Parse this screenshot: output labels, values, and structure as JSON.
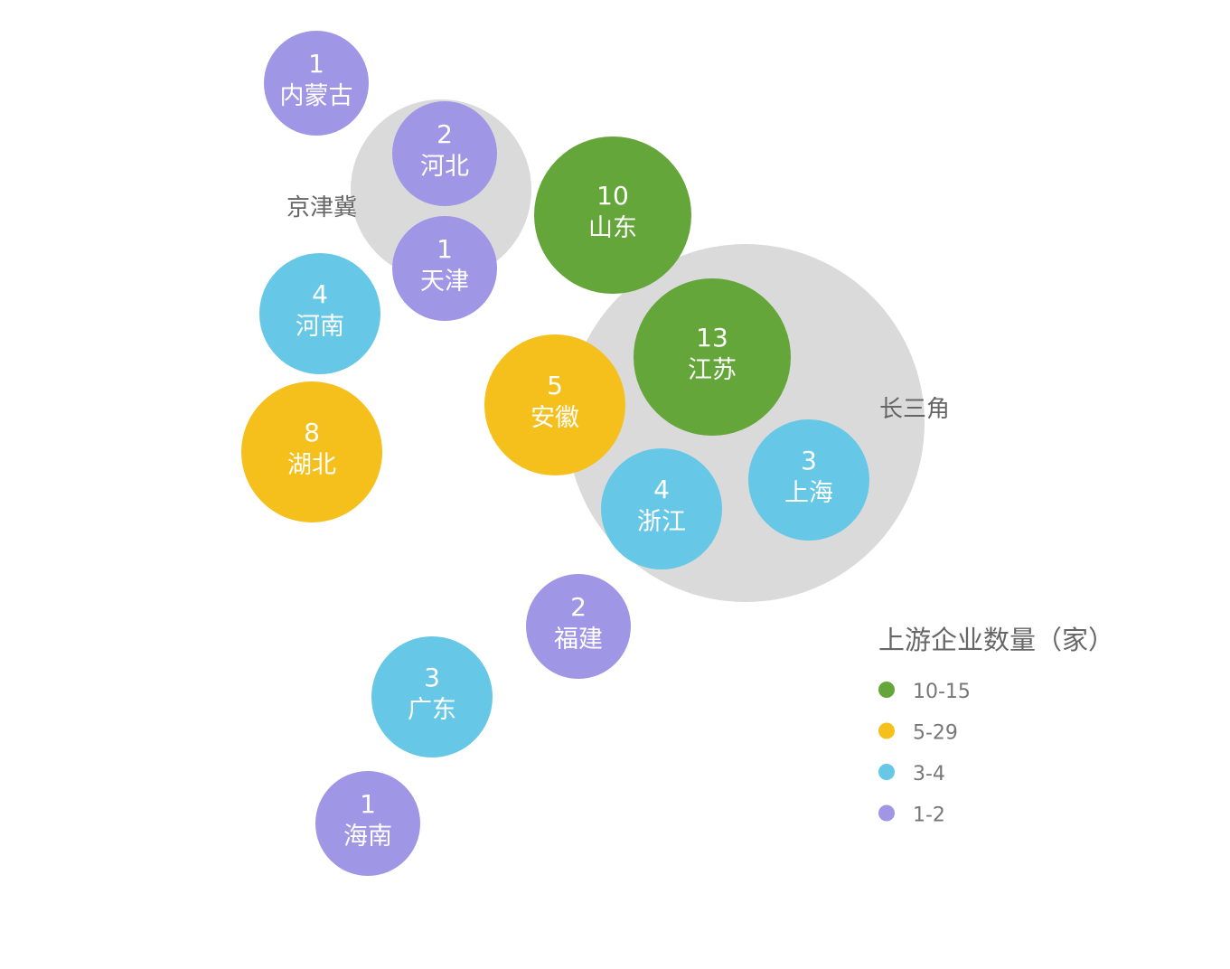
{
  "chart_data": {
    "type": "bubble",
    "groups": [
      {
        "label": "京津冀",
        "members": [
          "河北",
          "天津"
        ]
      },
      {
        "label": "长三角",
        "members": [
          "江苏",
          "浙江",
          "上海"
        ]
      }
    ],
    "points": [
      {
        "name": "内蒙古",
        "value": 1,
        "category": "1-2"
      },
      {
        "name": "河北",
        "value": 2,
        "category": "1-2"
      },
      {
        "name": "天津",
        "value": 1,
        "category": "1-2"
      },
      {
        "name": "山东",
        "value": 10,
        "category": "10-15"
      },
      {
        "name": "江苏",
        "value": 13,
        "category": "10-15"
      },
      {
        "name": "河南",
        "value": 4,
        "category": "3-4"
      },
      {
        "name": "湖北",
        "value": 8,
        "category": "5-29"
      },
      {
        "name": "安徽",
        "value": 5,
        "category": "5-29"
      },
      {
        "name": "浙江",
        "value": 4,
        "category": "3-4"
      },
      {
        "name": "上海",
        "value": 3,
        "category": "3-4"
      },
      {
        "name": "福建",
        "value": 2,
        "category": "1-2"
      },
      {
        "name": "广东",
        "value": 3,
        "category": "3-4"
      },
      {
        "name": "海南",
        "value": 1,
        "category": "1-2"
      }
    ],
    "legend": {
      "title": "上游企业数量（家）",
      "placement": "bottom-right",
      "items": [
        {
          "label": "10-15",
          "color": "#64a639"
        },
        {
          "label": "5-29",
          "color": "#f5c01c"
        },
        {
          "label": "3-4",
          "color": "#66c8e6"
        },
        {
          "label": "1-2",
          "color": "#9f97e6"
        }
      ]
    },
    "group_color": "#dadada"
  }
}
